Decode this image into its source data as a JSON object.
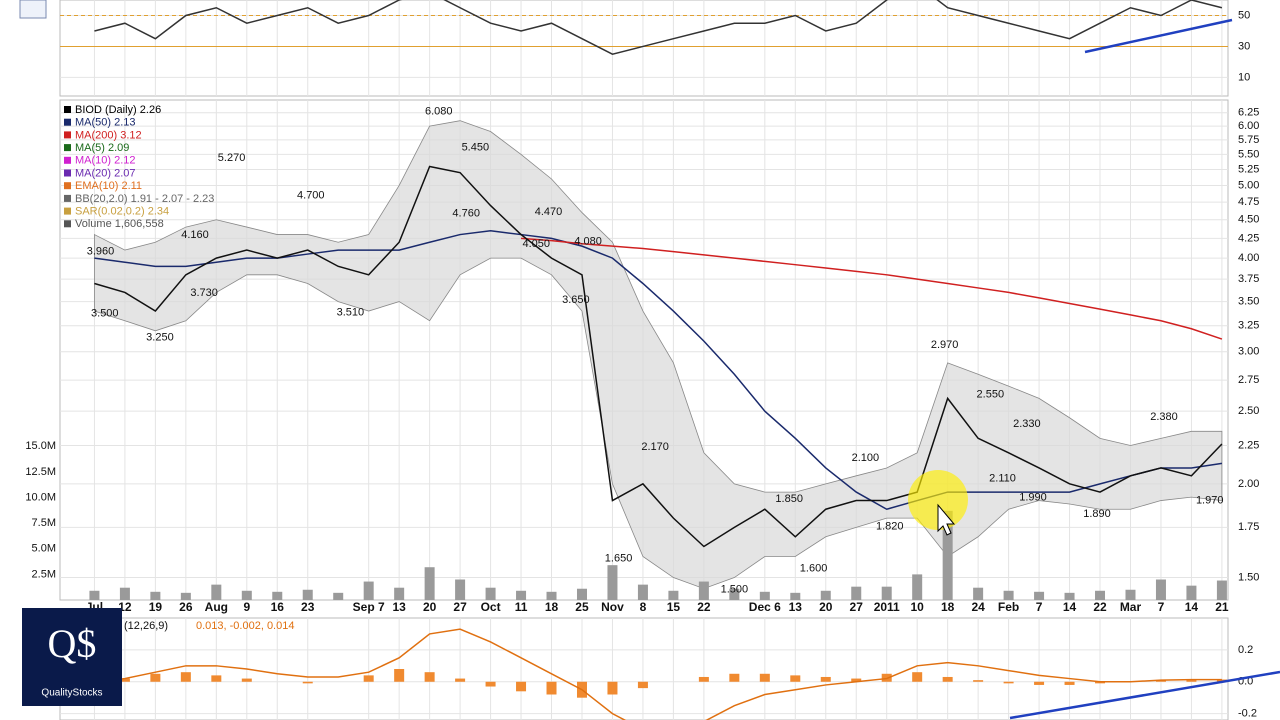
{
  "logo": {
    "mark": "Q$",
    "name": "QualityStocks"
  },
  "chart_data": [
    {
      "type": "line",
      "panel": "indicator",
      "x": [
        -1,
        0,
        1,
        2,
        3,
        4,
        5,
        6,
        7,
        8,
        9,
        10,
        11,
        12,
        13,
        14,
        15,
        16,
        17,
        18,
        19,
        20,
        21,
        22,
        23,
        24,
        25,
        26,
        27,
        28,
        29,
        30,
        31,
        32,
        33,
        34,
        35,
        36
      ],
      "xlim": [
        -2.13,
        36.2
      ],
      "ylim": [
        -2,
        60
      ],
      "yticks": [
        10,
        30,
        50
      ],
      "levels": [
        30,
        50
      ],
      "level_color": "#e0a030",
      "series": [
        {
          "color": "#333333",
          "values": [
            40,
            45,
            35,
            50,
            55,
            45,
            50,
            55,
            45,
            50,
            60,
            65,
            55,
            45,
            40,
            45,
            35,
            25,
            30,
            35,
            40,
            45,
            45,
            50,
            40,
            45,
            60,
            70,
            55,
            50,
            45,
            40,
            35,
            45,
            55,
            50,
            60,
            55
          ]
        }
      ]
    },
    {
      "type": "line",
      "panel": "price",
      "log_scale": true,
      "grid": true,
      "x": [
        -1,
        0,
        1,
        2,
        3,
        4,
        5,
        6,
        7,
        8,
        9,
        10,
        11,
        12,
        13,
        14,
        15,
        16,
        17,
        18,
        19,
        20,
        21,
        22,
        23,
        24,
        25,
        26,
        27,
        28,
        29,
        30,
        31,
        32,
        33,
        34,
        35,
        36
      ],
      "xlim": [
        -2.13,
        36.2
      ],
      "ylim": [
        1.4,
        6.5
      ],
      "xticks": [
        {
          "value": -1,
          "label": "Jul"
        },
        {
          "value": 0,
          "label": "12"
        },
        {
          "value": 1,
          "label": "19"
        },
        {
          "value": 2,
          "label": "26"
        },
        {
          "value": 3,
          "label": "Aug"
        },
        {
          "value": 4,
          "label": "9"
        },
        {
          "value": 5,
          "label": "16"
        },
        {
          "value": 6,
          "label": "23"
        },
        {
          "value": 8,
          "label": "Sep 7"
        },
        {
          "value": 9,
          "label": "13"
        },
        {
          "value": 10,
          "label": "20"
        },
        {
          "value": 11,
          "label": "27"
        },
        {
          "value": 12,
          "label": "Oct"
        },
        {
          "value": 13,
          "label": "11"
        },
        {
          "value": 14,
          "label": "18"
        },
        {
          "value": 15,
          "label": "25"
        },
        {
          "value": 16,
          "label": "Nov"
        },
        {
          "value": 17,
          "label": "8"
        },
        {
          "value": 18,
          "label": "15"
        },
        {
          "value": 19,
          "label": "22"
        },
        {
          "value": 21,
          "label": "Dec 6"
        },
        {
          "value": 22,
          "label": "13"
        },
        {
          "value": 23,
          "label": "20"
        },
        {
          "value": 24,
          "label": "27"
        },
        {
          "value": 25,
          "label": "2011"
        },
        {
          "value": 26,
          "label": "10"
        },
        {
          "value": 27,
          "label": "18"
        },
        {
          "value": 28,
          "label": "24"
        },
        {
          "value": 29,
          "label": "Feb"
        },
        {
          "value": 30,
          "label": "7"
        },
        {
          "value": 31,
          "label": "14"
        },
        {
          "value": 32,
          "label": "22"
        },
        {
          "value": 33,
          "label": "Mar"
        },
        {
          "value": 34,
          "label": "7"
        },
        {
          "value": 35,
          "label": "14"
        },
        {
          "value": 36,
          "label": "21"
        }
      ],
      "yticks": [
        {
          "value": 1.5,
          "label": "1.50"
        },
        {
          "value": 1.75,
          "label": "1.75"
        },
        {
          "value": 2,
          "label": "2.00"
        },
        {
          "value": 2.25,
          "label": "2.25"
        },
        {
          "value": 2.5,
          "label": "2.50"
        },
        {
          "value": 2.75,
          "label": "2.75"
        },
        {
          "value": 3,
          "label": "3.00"
        },
        {
          "value": 3.25,
          "label": "3.25"
        },
        {
          "value": 3.5,
          "label": "3.50"
        },
        {
          "value": 3.75,
          "label": "3.75"
        },
        {
          "value": 4,
          "label": "4.00"
        },
        {
          "value": 4.25,
          "label": "4.25"
        },
        {
          "value": 4.5,
          "label": "4.50"
        },
        {
          "value": 4.75,
          "label": "4.75"
        },
        {
          "value": 5,
          "label": "5.00"
        },
        {
          "value": 5.25,
          "label": "5.25"
        },
        {
          "value": 5.5,
          "label": "5.50"
        },
        {
          "value": 5.75,
          "label": "5.75"
        },
        {
          "value": 6,
          "label": "6.00"
        },
        {
          "value": 6.25,
          "label": "6.25"
        }
      ],
      "y2lim": [
        0,
        48800000
      ],
      "y2ticks": [
        {
          "value": 2500000,
          "label": "2.5M"
        },
        {
          "value": 5000000,
          "label": "5.0M"
        },
        {
          "value": 7500000,
          "label": "7.5M"
        },
        {
          "value": 10000000,
          "label": "10.0M"
        },
        {
          "value": 12500000,
          "label": "12.5M"
        },
        {
          "value": 15000000,
          "label": "15.0M"
        }
      ],
      "legend": [
        {
          "label": "BIOD (Daily) 2.26",
          "color": "#000000"
        },
        {
          "label": "MA(50) 2.13",
          "color": "#1a2a6c"
        },
        {
          "label": "MA(200) 3.12",
          "color": "#d02020"
        },
        {
          "label": "MA(5) 2.09",
          "color": "#1a6a1a"
        },
        {
          "label": "MA(10) 2.12",
          "color": "#d020d0"
        },
        {
          "label": "MA(20) 2.07",
          "color": "#6a2ab0"
        },
        {
          "label": "EMA(10) 2.11",
          "color": "#e07020"
        },
        {
          "label": "BB(20,2.0) 1.91 - 2.07 - 2.23",
          "color": "#666666"
        },
        {
          "label": "SAR(0.02,0.2) 2.34",
          "color": "#c8a040"
        },
        {
          "label": "Volume 1,606,558",
          "color": "#555555"
        }
      ],
      "bands": {
        "color": "#d8d8d8",
        "upper": [
          4.3,
          4.1,
          4.2,
          4.4,
          4.5,
          4.4,
          4.3,
          4.3,
          4.2,
          4.3,
          5.0,
          6.0,
          6.1,
          5.9,
          5.5,
          5.1,
          4.6,
          4.2,
          3.4,
          2.9,
          2.2,
          2.0,
          1.95,
          1.95,
          2.0,
          2.05,
          2.1,
          2.2,
          2.9,
          2.8,
          2.7,
          2.6,
          2.45,
          2.3,
          2.25,
          2.3,
          2.35,
          2.35
        ],
        "lower": [
          3.4,
          3.3,
          3.2,
          3.3,
          3.6,
          3.8,
          3.8,
          3.7,
          3.5,
          3.4,
          3.5,
          3.3,
          3.8,
          4.0,
          4.0,
          3.8,
          3.4,
          2.0,
          1.6,
          1.5,
          1.45,
          1.5,
          1.6,
          1.6,
          1.7,
          1.75,
          1.8,
          1.8,
          1.6,
          1.7,
          1.85,
          1.9,
          1.88,
          1.85,
          1.85,
          1.9,
          1.92,
          1.9
        ]
      },
      "series": [
        {
          "color": "#1a2a6c",
          "values": [
            4.0,
            3.95,
            3.9,
            3.9,
            3.95,
            4.0,
            4.0,
            4.05,
            4.1,
            4.1,
            4.1,
            4.2,
            4.3,
            4.35,
            4.3,
            4.25,
            4.15,
            4.0,
            3.7,
            3.4,
            3.1,
            2.8,
            2.5,
            2.3,
            2.1,
            1.95,
            1.85,
            1.9,
            1.95,
            1.95,
            1.95,
            1.95,
            1.95,
            2.0,
            2.05,
            2.1,
            2.1,
            2.13
          ]
        },
        {
          "color": "#d02020",
          "values": [
            null,
            null,
            null,
            null,
            null,
            null,
            null,
            null,
            null,
            null,
            null,
            null,
            null,
            null,
            4.25,
            4.22,
            4.18,
            4.15,
            4.12,
            4.08,
            4.04,
            4.0,
            3.96,
            3.92,
            3.88,
            3.84,
            3.8,
            3.75,
            3.7,
            3.65,
            3.6,
            3.54,
            3.48,
            3.42,
            3.36,
            3.3,
            3.22,
            3.12
          ]
        },
        {
          "color": "#111111",
          "values": [
            3.7,
            3.6,
            3.4,
            3.8,
            4.0,
            4.1,
            4.0,
            4.1,
            3.9,
            3.8,
            4.2,
            5.3,
            5.2,
            4.7,
            4.3,
            4.0,
            3.8,
            1.9,
            2.0,
            1.8,
            1.65,
            1.75,
            1.85,
            1.7,
            1.85,
            1.9,
            1.9,
            1.95,
            2.6,
            2.3,
            2.2,
            2.1,
            2.0,
            1.95,
            2.05,
            2.1,
            2.05,
            2.26
          ]
        },
        {
          "color": "#9a9a9a",
          "axis": "y2",
          "kind": "bar",
          "values": [
            900000,
            1200000,
            800000,
            700000,
            1500000,
            900000,
            800000,
            1000000,
            700000,
            1800000,
            1200000,
            3200000,
            2000000,
            1200000,
            900000,
            800000,
            1100000,
            3400000,
            1500000,
            900000,
            1800000,
            1100000,
            800000,
            700000,
            900000,
            1300000,
            1300000,
            2500000,
            8700000,
            1200000,
            900000,
            800000,
            700000,
            900000,
            1000000,
            2000000,
            1400000,
            1900000
          ]
        }
      ],
      "annotations": [
        {
          "x": -0.8,
          "value": 3.96,
          "label": "3.960"
        },
        {
          "x": -0.66,
          "value": 3.5,
          "label": "3.500"
        },
        {
          "x": 1.15,
          "value": 3.25,
          "label": "3.250"
        },
        {
          "x": 2.6,
          "value": 3.73,
          "label": "3.730"
        },
        {
          "x": 2.3,
          "value": 4.16,
          "label": "4.160"
        },
        {
          "x": 3.5,
          "value": 5.27,
          "label": "5.270"
        },
        {
          "x": 6.1,
          "value": 4.7,
          "label": "4.700"
        },
        {
          "x": 7.4,
          "value": 3.51,
          "label": "3.510"
        },
        {
          "x": 10.3,
          "value": 6.08,
          "label": "6.080"
        },
        {
          "x": 11.5,
          "value": 5.45,
          "label": "5.450"
        },
        {
          "x": 11.2,
          "value": 4.76,
          "label": "4.760"
        },
        {
          "x": 13.9,
          "value": 4.47,
          "label": "4.470"
        },
        {
          "x": 15.2,
          "value": 4.08,
          "label": "4.080"
        },
        {
          "x": 13.5,
          "value": 4.05,
          "label": "4.050"
        },
        {
          "x": 14.8,
          "value": 3.65,
          "label": "3.650"
        },
        {
          "x": 17.4,
          "value": 2.17,
          "label": "2.170"
        },
        {
          "x": 16.2,
          "value": 1.65,
          "label": "1.650"
        },
        {
          "x": 20,
          "value": 1.5,
          "label": "1.500"
        },
        {
          "x": 21.8,
          "value": 1.85,
          "label": "1.850"
        },
        {
          "x": 22.6,
          "value": 1.6,
          "label": "1.600"
        },
        {
          "x": 24.3,
          "value": 2.1,
          "label": "2.100"
        },
        {
          "x": 25.1,
          "value": 1.82,
          "label": "1.820"
        },
        {
          "x": 26.9,
          "value": 2.97,
          "label": "2.970"
        },
        {
          "x": 28.4,
          "value": 2.55,
          "label": "2.550"
        },
        {
          "x": 29.6,
          "value": 2.33,
          "label": "2.330"
        },
        {
          "x": 28.8,
          "value": 2.11,
          "label": "2.110"
        },
        {
          "x": 29.8,
          "value": 1.99,
          "label": "1.990"
        },
        {
          "x": 31.9,
          "value": 1.89,
          "label": "1.890"
        },
        {
          "x": 34.1,
          "value": 2.38,
          "label": "2.380"
        },
        {
          "x": 35.6,
          "value": 1.97,
          "label": "1.970"
        }
      ]
    },
    {
      "type": "line",
      "panel": "macd",
      "title": "(12,26,9)",
      "subtitle": "0.013, -0.002, 0.014",
      "x": [
        -1,
        0,
        1,
        2,
        3,
        4,
        5,
        6,
        7,
        8,
        9,
        10,
        11,
        12,
        13,
        14,
        15,
        16,
        17,
        18,
        19,
        20,
        21,
        22,
        23,
        24,
        25,
        26,
        27,
        28,
        29,
        30,
        31,
        32,
        33,
        34,
        35,
        36
      ],
      "xlim": [
        -2.13,
        36.2
      ],
      "ylim": [
        -0.24,
        0.4
      ],
      "yticks": [
        0.2,
        {
          "value": 0,
          "label": "0.0"
        },
        -0.2
      ],
      "series": [
        {
          "color": "#f08a30",
          "kind": "bar",
          "values": [
            0,
            0.02,
            0.05,
            0.06,
            0.04,
            0.02,
            0,
            -0.01,
            0,
            0.04,
            0.08,
            0.06,
            0.02,
            -0.03,
            -0.06,
            -0.08,
            -0.1,
            -0.08,
            -0.04,
            0,
            0.03,
            0.05,
            0.05,
            0.04,
            0.03,
            0.02,
            0.05,
            0.06,
            0.03,
            0.01,
            -0.01,
            -0.02,
            -0.02,
            -0.01,
            0,
            0.01,
            0.01,
            0.014
          ]
        },
        {
          "color": "#e07010",
          "values": [
            0,
            0.02,
            0.06,
            0.1,
            0.1,
            0.08,
            0.05,
            0.03,
            0.03,
            0.06,
            0.15,
            0.3,
            0.33,
            0.25,
            0.15,
            0.05,
            -0.05,
            -0.2,
            -0.3,
            -0.3,
            -0.25,
            -0.15,
            -0.08,
            -0.05,
            -0.02,
            0,
            0.02,
            0.1,
            0.12,
            0.1,
            0.07,
            0.04,
            0.02,
            0,
            0,
            0.01,
            0.013,
            0.013
          ]
        }
      ]
    }
  ]
}
